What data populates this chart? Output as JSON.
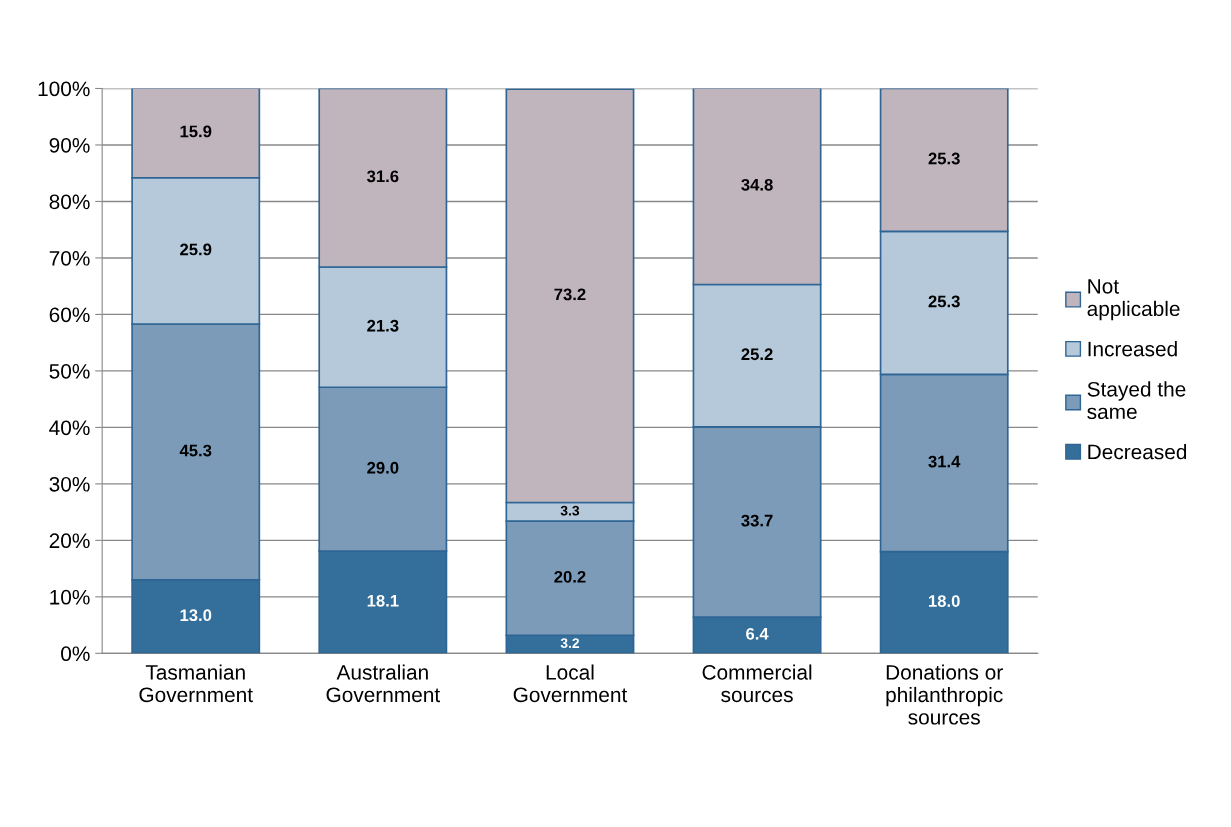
{
  "chart_data": {
    "type": "bar",
    "stacked": true,
    "categories": [
      "Tasmanian\nGovernment",
      "Australian\nGovernment",
      "Local\nGovernment",
      "Commercial\nsources",
      "Donations or\nphilanthropic\nsources"
    ],
    "series": [
      {
        "name": "Decreased",
        "color": "#346f9b",
        "values": [
          13.0,
          18.1,
          3.2,
          6.4,
          18.0
        ],
        "value_labels": [
          "13.0",
          "18.1",
          "3.2",
          "6.4",
          "18.0"
        ]
      },
      {
        "name": "Stayed the\nsame",
        "color": "#7b9bb8",
        "values": [
          45.3,
          29.0,
          20.2,
          33.7,
          31.4
        ],
        "value_labels": [
          "45.3",
          "29.0",
          "20.2",
          "33.7",
          "31.4"
        ]
      },
      {
        "name": "Increased",
        "color": "#b5c9da",
        "values": [
          25.9,
          21.3,
          3.3,
          25.2,
          25.3
        ],
        "value_labels": [
          "25.9",
          "21.3",
          "3.3",
          "25.2",
          "25.3"
        ]
      },
      {
        "name": "Not\napplicable",
        "color": "#c1b5bd",
        "values": [
          15.9,
          31.6,
          73.2,
          34.8,
          25.3
        ],
        "value_labels": [
          "15.9",
          "31.6",
          "73.2",
          "34.8",
          "25.3"
        ]
      }
    ],
    "ylim": [
      0,
      100
    ],
    "yticks": [
      {
        "value": 0,
        "label": "0%"
      },
      {
        "value": 10,
        "label": "10%"
      },
      {
        "value": 20,
        "label": "20%"
      },
      {
        "value": 30,
        "label": "30%"
      },
      {
        "value": 40,
        "label": "40%"
      },
      {
        "value": 50,
        "label": "50%"
      },
      {
        "value": 60,
        "label": "60%"
      },
      {
        "value": 70,
        "label": "70%"
      },
      {
        "value": 80,
        "label": "80%"
      },
      {
        "value": 90,
        "label": "90%"
      },
      {
        "value": 100,
        "label": "100%"
      }
    ],
    "grid": "y",
    "legend": "right"
  }
}
